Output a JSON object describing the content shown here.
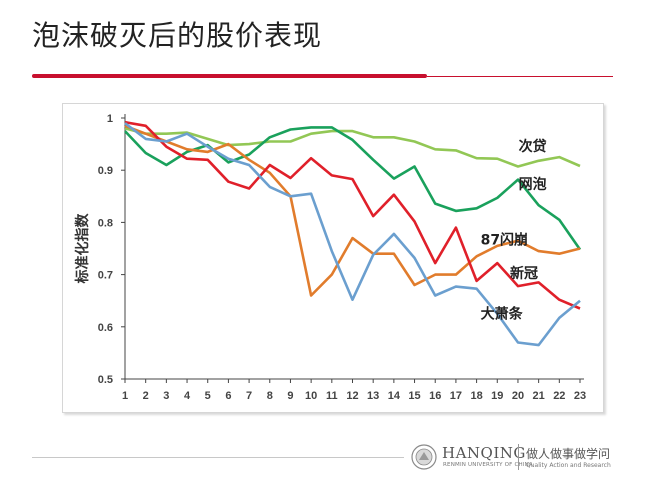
{
  "slide": {
    "title": "泡沫破灭后的股价表现"
  },
  "footer": {
    "brand_name": "HANQING",
    "brand_sub": "RENMIN UNIVERSITY OF CHINA",
    "motto": "做人做事做学问",
    "motto_en": "Quality Action and Research"
  },
  "chart_data": {
    "type": "line",
    "ylabel": "标准化指数",
    "ylim": [
      0.5,
      1.0
    ],
    "yticks": [
      0.5,
      0.6,
      0.7,
      0.8,
      0.9,
      1
    ],
    "ytick_labels": [
      "0.5",
      "0.6",
      "0.7",
      "0.8",
      "0.9",
      "1"
    ],
    "x": [
      1,
      2,
      3,
      4,
      5,
      6,
      7,
      8,
      9,
      10,
      11,
      12,
      13,
      14,
      15,
      16,
      17,
      18,
      19,
      20,
      21,
      22,
      23
    ],
    "grid": false,
    "series": [
      {
        "name": "次贷",
        "color": "#92c755",
        "values": [
          0.98,
          0.97,
          0.97,
          0.972,
          0.96,
          0.948,
          0.95,
          0.955,
          0.955,
          0.97,
          0.975,
          0.975,
          0.963,
          0.963,
          0.955,
          0.94,
          0.938,
          0.923,
          0.922,
          0.907,
          0.918,
          0.925,
          0.908
        ]
      },
      {
        "name": "网泡",
        "color": "#1aa15c",
        "values": [
          0.975,
          0.933,
          0.91,
          0.935,
          0.948,
          0.915,
          0.93,
          0.963,
          0.978,
          0.982,
          0.982,
          0.958,
          0.92,
          0.884,
          0.907,
          0.836,
          0.822,
          0.827,
          0.847,
          0.882,
          0.833,
          0.805,
          0.748
        ]
      },
      {
        "name": "87闪崩",
        "color": "#e17c2c",
        "values": [
          0.985,
          0.97,
          0.955,
          0.94,
          0.935,
          0.95,
          0.92,
          0.895,
          0.85,
          0.66,
          0.7,
          0.77,
          0.74,
          0.74,
          0.68,
          0.7,
          0.7,
          0.735,
          0.755,
          0.765,
          0.745,
          0.74,
          0.75
        ]
      },
      {
        "name": "新冠",
        "color": "#e0202a",
        "values": [
          0.992,
          0.985,
          0.945,
          0.922,
          0.92,
          0.878,
          0.865,
          0.91,
          0.885,
          0.923,
          0.89,
          0.883,
          0.812,
          0.853,
          0.802,
          0.722,
          0.79,
          0.688,
          0.722,
          0.678,
          0.685,
          0.652,
          0.635
        ]
      },
      {
        "name": "大萧条",
        "color": "#6b9fcf",
        "values": [
          0.99,
          0.96,
          0.955,
          0.97,
          0.945,
          0.922,
          0.91,
          0.868,
          0.85,
          0.855,
          0.745,
          0.652,
          0.738,
          0.778,
          0.732,
          0.66,
          0.677,
          0.673,
          0.625,
          0.57,
          0.565,
          0.617,
          0.65
        ]
      }
    ]
  }
}
